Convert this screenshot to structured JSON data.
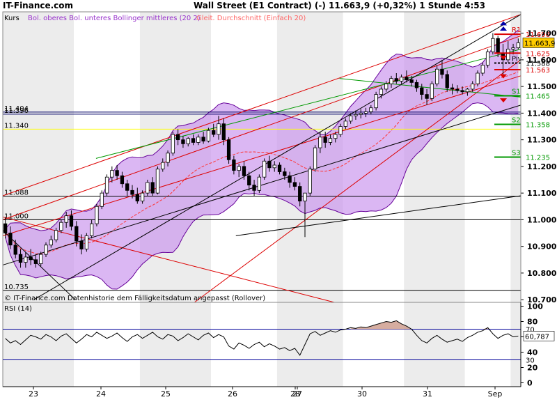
{
  "header": {
    "brand": "IT-Finance.com",
    "title": "Wall Street (E1 Contract) (-)   11.663,9 (+0,32%)     1 Stunde  4:53"
  },
  "legend": [
    {
      "label": "Kurs",
      "color": "#000000"
    },
    {
      "label": "Bol. oberes Bol. unteres Bollinger mittleres (20 2)",
      "color": "#9933cc"
    },
    {
      "label": "Gleit. Durchschnitt (Einfach 20)",
      "color": "#ff6666"
    }
  ],
  "footer_note": "© IT-Finance.com  Datenhistorie dem Fälligkeitsdatum angepasst (Rollover)",
  "colors": {
    "band_fill": "#cc99ee",
    "band_line": "#660099",
    "sma": "#ff3333",
    "up": "#ffffff",
    "down": "#000000",
    "channel_red": "#dd0000",
    "channel_green": "#009900",
    "channel_black": "#000000",
    "highlight": "#ffff00"
  },
  "chart_data": [
    {
      "type": "candlestick",
      "name": "Kurs",
      "ylim": [
        10690,
        11780
      ],
      "x_ticks": [
        "23",
        "24",
        "25",
        "26",
        "27",
        "28",
        "30",
        "31",
        "Sep"
      ],
      "y_ticks": [
        "11.700",
        "11.600",
        "11.500",
        "11.400",
        "11.300",
        "11.200",
        "11.100",
        "11.000",
        "10.900",
        "10.800",
        "10.700"
      ],
      "pivot_levels": [
        {
          "label": "R1",
          "value": 11696,
          "value_label": "11.696",
          "color": "#dd0000"
        },
        {
          "label": "",
          "value": 11625,
          "value_label": "11.625",
          "color": "#dd0000"
        },
        {
          "label": "Piv",
          "value": 11588,
          "value_label": "11.588",
          "color": "#000000"
        },
        {
          "label": "",
          "value": 11563,
          "value_label": "11.563",
          "color": "#dd0000"
        },
        {
          "label": "S1",
          "value": 11465,
          "value_label": "11.465",
          "color": "#009900"
        },
        {
          "label": "S2",
          "value": 11358,
          "value_label": "11.358",
          "color": "#009900"
        },
        {
          "label": "S3",
          "value": 11235,
          "value_label": "11.235",
          "color": "#009900"
        }
      ],
      "last_price": {
        "value": 11663.9,
        "label": "11.663,9"
      },
      "horizontal_levels": [
        {
          "value": 11404,
          "label": "11.404",
          "color": "#000066"
        },
        {
          "value": 11396,
          "label": "11.396",
          "color": "#000066"
        },
        {
          "value": 11340,
          "label": "11.340",
          "color": "#dddd00"
        },
        {
          "value": 11088,
          "label": "11.088",
          "color": "#000000"
        },
        {
          "value": 11000,
          "label": "11.000",
          "color": "#000000"
        },
        {
          "value": 10735,
          "label": "10.735",
          "color": "#000000"
        }
      ],
      "trend_lines": [
        {
          "color": "#dd0000",
          "from": [
            0,
            11090
          ],
          "to": [
            1.0,
            11770
          ]
        },
        {
          "color": "#dd0000",
          "from": [
            0,
            11000
          ],
          "to": [
            1.0,
            11690
          ]
        },
        {
          "color": "#dd0000",
          "from": [
            0,
            10940
          ],
          "to": [
            1.0,
            11540
          ]
        },
        {
          "color": "#dd0000",
          "from": [
            0.37,
            10690
          ],
          "to": [
            1.0,
            11600
          ]
        },
        {
          "color": "#dd0000",
          "from": [
            0,
            11010
          ],
          "to": [
            0.64,
            10690
          ]
        },
        {
          "color": "#009900",
          "from": [
            0.18,
            11230
          ],
          "to": [
            1.0,
            11640
          ]
        },
        {
          "color": "#009900",
          "from": [
            0.65,
            11530
          ],
          "to": [
            1.0,
            11460
          ]
        },
        {
          "color": "#000000",
          "from": [
            0.06,
            10700
          ],
          "to": [
            1.0,
            11770
          ]
        },
        {
          "color": "#000000",
          "from": [
            0,
            10830
          ],
          "to": [
            1.0,
            11430
          ]
        },
        {
          "color": "#000000",
          "from": [
            0.45,
            10940
          ],
          "to": [
            1.0,
            11090
          ]
        },
        {
          "color": "#000000",
          "from": [
            0,
            10960
          ],
          "to": [
            0.14,
            10700
          ]
        }
      ],
      "candles": [
        [
          10985,
          11010,
          10930,
          10950
        ],
        [
          10950,
          10975,
          10890,
          10905
        ],
        [
          10905,
          10925,
          10855,
          10870
        ],
        [
          10870,
          10890,
          10820,
          10840
        ],
        [
          10840,
          10880,
          10820,
          10860
        ],
        [
          10860,
          10890,
          10830,
          10850
        ],
        [
          10850,
          10870,
          10820,
          10835
        ],
        [
          10835,
          10880,
          10825,
          10870
        ],
        [
          10870,
          10915,
          10860,
          10905
        ],
        [
          10905,
          10940,
          10895,
          10925
        ],
        [
          10925,
          10970,
          10915,
          10960
        ],
        [
          10960,
          11000,
          10950,
          10990
        ],
        [
          10990,
          11030,
          10970,
          11015
        ],
        [
          11015,
          11035,
          10960,
          10975
        ],
        [
          10975,
          10995,
          10900,
          10920
        ],
        [
          10920,
          10945,
          10870,
          10890
        ],
        [
          10890,
          10950,
          10880,
          10940
        ],
        [
          10940,
          11000,
          10930,
          10985
        ],
        [
          10985,
          11060,
          10975,
          11050
        ],
        [
          11050,
          11110,
          11040,
          11100
        ],
        [
          11100,
          11170,
          11090,
          11160
        ],
        [
          11160,
          11200,
          11140,
          11185
        ],
        [
          11185,
          11205,
          11150,
          11165
        ],
        [
          11165,
          11180,
          11120,
          11135
        ],
        [
          11135,
          11150,
          11090,
          11110
        ],
        [
          11110,
          11130,
          11080,
          11095
        ],
        [
          11095,
          11120,
          11060,
          11070
        ],
        [
          11070,
          11110,
          11060,
          11100
        ],
        [
          11100,
          11150,
          11090,
          11140
        ],
        [
          11140,
          11160,
          11090,
          11100
        ],
        [
          11100,
          11200,
          11095,
          11190
        ],
        [
          11190,
          11230,
          11180,
          11215
        ],
        [
          11215,
          11260,
          11200,
          11250
        ],
        [
          11250,
          11330,
          11240,
          11320
        ],
        [
          11320,
          11340,
          11280,
          11300
        ],
        [
          11300,
          11315,
          11270,
          11285
        ],
        [
          11285,
          11310,
          11275,
          11305
        ],
        [
          11305,
          11320,
          11280,
          11290
        ],
        [
          11290,
          11320,
          11280,
          11310
        ],
        [
          11310,
          11330,
          11285,
          11295
        ],
        [
          11295,
          11345,
          11290,
          11335
        ],
        [
          11335,
          11360,
          11310,
          11320
        ],
        [
          11320,
          11390,
          11300,
          11360
        ],
        [
          11360,
          11380,
          11280,
          11300
        ],
        [
          11300,
          11310,
          11210,
          11225
        ],
        [
          11225,
          11240,
          11170,
          11185
        ],
        [
          11185,
          11210,
          11160,
          11200
        ],
        [
          11200,
          11220,
          11150,
          11165
        ],
        [
          11165,
          11180,
          11110,
          11130
        ],
        [
          11130,
          11150,
          11090,
          11110
        ],
        [
          11110,
          11170,
          11100,
          11160
        ],
        [
          11160,
          11230,
          11150,
          11220
        ],
        [
          11220,
          11240,
          11180,
          11195
        ],
        [
          11195,
          11220,
          11180,
          11205
        ],
        [
          11205,
          11215,
          11170,
          11180
        ],
        [
          11180,
          11195,
          11150,
          11165
        ],
        [
          11165,
          11180,
          11120,
          11140
        ],
        [
          11140,
          11160,
          11110,
          11125
        ],
        [
          11125,
          11140,
          11050,
          11070
        ],
        [
          11070,
          11100,
          10935,
          11100
        ],
        [
          11100,
          11200,
          11090,
          11190
        ],
        [
          11190,
          11280,
          11180,
          11270
        ],
        [
          11270,
          11330,
          11250,
          11310
        ],
        [
          11310,
          11330,
          11270,
          11290
        ],
        [
          11290,
          11320,
          11280,
          11305
        ],
        [
          11305,
          11330,
          11290,
          11320
        ],
        [
          11320,
          11360,
          11310,
          11350
        ],
        [
          11350,
          11380,
          11340,
          11370
        ],
        [
          11370,
          11400,
          11360,
          11390
        ],
        [
          11390,
          11410,
          11375,
          11395
        ],
        [
          11395,
          11415,
          11380,
          11400
        ],
        [
          11400,
          11420,
          11385,
          11405
        ],
        [
          11405,
          11430,
          11395,
          11420
        ],
        [
          11420,
          11480,
          11410,
          11470
        ],
        [
          11470,
          11500,
          11455,
          11490
        ],
        [
          11490,
          11520,
          11480,
          11510
        ],
        [
          11510,
          11540,
          11495,
          11530
        ],
        [
          11530,
          11550,
          11510,
          11520
        ],
        [
          11520,
          11545,
          11510,
          11535
        ],
        [
          11535,
          11560,
          11515,
          11525
        ],
        [
          11525,
          11540,
          11500,
          11515
        ],
        [
          11515,
          11525,
          11480,
          11495
        ],
        [
          11495,
          11510,
          11450,
          11470
        ],
        [
          11470,
          11490,
          11430,
          11455
        ],
        [
          11455,
          11520,
          11445,
          11510
        ],
        [
          11510,
          11580,
          11500,
          11565
        ],
        [
          11565,
          11600,
          11530,
          11545
        ],
        [
          11545,
          11560,
          11480,
          11495
        ],
        [
          11495,
          11510,
          11470,
          11490
        ],
        [
          11490,
          11505,
          11475,
          11485
        ],
        [
          11485,
          11500,
          11470,
          11480
        ],
        [
          11480,
          11495,
          11465,
          11490
        ],
        [
          11490,
          11520,
          11480,
          11510
        ],
        [
          11510,
          11560,
          11500,
          11550
        ],
        [
          11550,
          11590,
          11540,
          11580
        ],
        [
          11580,
          11640,
          11570,
          11630
        ],
        [
          11630,
          11700,
          11620,
          11680
        ],
        [
          11680,
          11690,
          11610,
          11625
        ],
        [
          11625,
          11660,
          11540,
          11600
        ],
        [
          11600,
          11670,
          11590,
          11640
        ],
        [
          11640,
          11660,
          11620,
          11645
        ],
        [
          11645,
          11680,
          11640,
          11664
        ]
      ]
    },
    {
      "type": "line",
      "name": "RSI (14)",
      "ylim": [
        -5,
        105
      ],
      "y_ticks": [
        100,
        80,
        60,
        40,
        20,
        0
      ],
      "reference_lines": [
        30,
        70
      ],
      "value_label": "60,787",
      "x_ticks": [
        "23",
        "24",
        "25",
        "26",
        "27",
        "28",
        "30",
        "31",
        "Sep"
      ],
      "values": [
        58,
        52,
        55,
        50,
        56,
        62,
        60,
        57,
        63,
        60,
        55,
        61,
        64,
        58,
        52,
        57,
        63,
        60,
        66,
        62,
        58,
        61,
        65,
        59,
        54,
        60,
        63,
        58,
        62,
        66,
        60,
        57,
        63,
        61,
        55,
        59,
        64,
        60,
        56,
        62,
        65,
        59,
        63,
        60,
        48,
        44,
        52,
        49,
        45,
        50,
        53,
        47,
        51,
        48,
        44,
        46,
        42,
        45,
        36,
        50,
        64,
        67,
        62,
        65,
        68,
        66,
        69,
        70,
        72,
        71,
        73,
        72,
        74,
        76,
        78,
        80,
        79,
        81,
        77,
        74,
        70,
        62,
        55,
        52,
        58,
        62,
        57,
        53,
        55,
        57,
        54,
        59,
        62,
        66,
        68,
        72,
        64,
        58,
        62,
        64,
        60,
        61
      ]
    }
  ]
}
